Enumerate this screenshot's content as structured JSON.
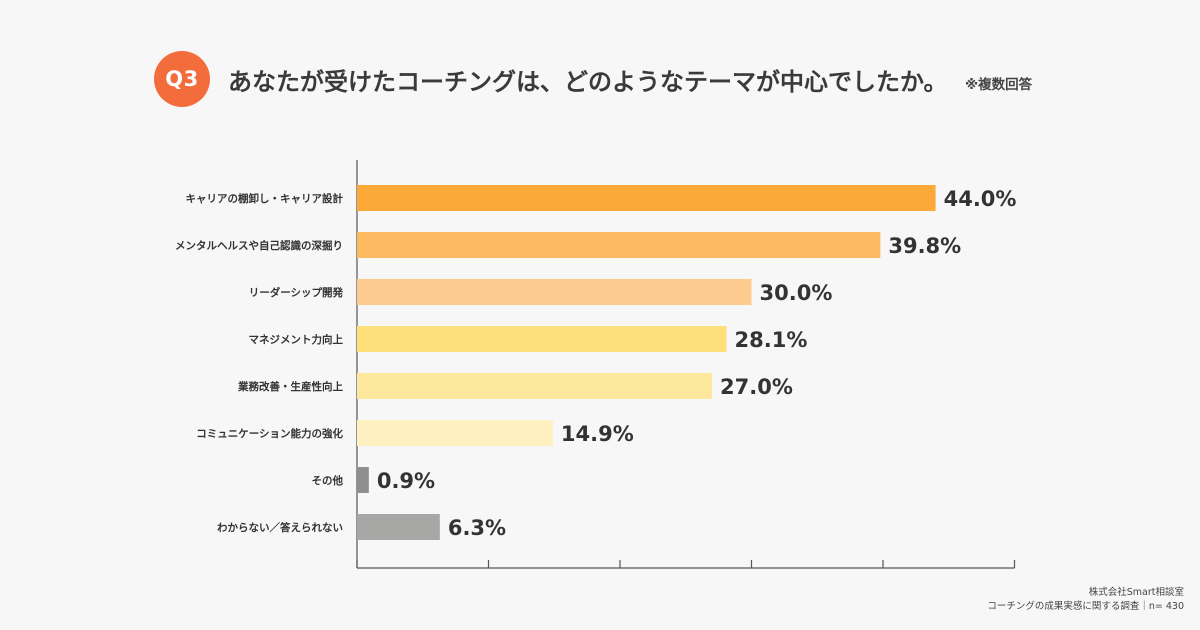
{
  "header": {
    "badge": "Q3",
    "title": "あなたが受けたコーチングは、どのようなテーマが中心でしたか。",
    "note": "※複数回答"
  },
  "footer": {
    "company": "株式会社Smart相談室",
    "survey": "コーチングの成果実感に関する調査｜n= 430"
  },
  "colors": {
    "badge": "#f36c3c",
    "bars": [
      "#fca93a",
      "#fdb95f",
      "#fdcb8f",
      "#fde07a",
      "#fde89e",
      "#fef0c0",
      "#8e9090",
      "#a7a7a5"
    ]
  },
  "chart_data": {
    "type": "bar",
    "orientation": "horizontal",
    "categories": [
      "キャリアの棚卸し・キャリア設計",
      "メンタルヘルスや自己認識の深掘り",
      "リーダーシップ開発",
      "マネジメント力向上",
      "業務改善・生産性向上",
      "コミュニケーション能力の強化",
      "その他",
      "わからない／答えられない"
    ],
    "values": [
      44.0,
      39.8,
      30.0,
      28.1,
      27.0,
      14.9,
      0.9,
      6.3
    ],
    "labels": [
      "44.0%",
      "39.8%",
      "30.0%",
      "28.1%",
      "27.0%",
      "14.9%",
      "0.9%",
      "6.3%"
    ],
    "xlim": [
      0,
      50
    ],
    "xticks": [
      0,
      10,
      20,
      30,
      40,
      50
    ],
    "unit": "%",
    "title": "あなたが受けたコーチングは、どのようなテーマが中心でしたか。"
  }
}
